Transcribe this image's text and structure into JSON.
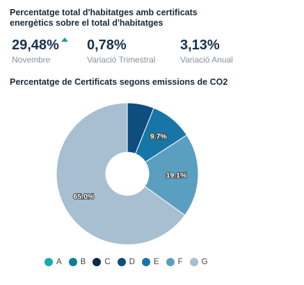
{
  "header": {
    "title": "Percentatge total d'habitatges amb certificats energètics sobre el total d'habitatges"
  },
  "kpis": [
    {
      "value": "29,48%",
      "label": "Novembre",
      "trend": "up"
    },
    {
      "value": "0,78%",
      "label": "Variació Trimestral"
    },
    {
      "value": "3,13%",
      "label": "Variació Anual"
    }
  ],
  "colors": {
    "accent_up": "#1d9c9c"
  },
  "chart_data": {
    "type": "pie",
    "title": "Percentatge de Certificats segons emissions de CO2",
    "donut": true,
    "categories": [
      "A",
      "B",
      "C",
      "D",
      "E",
      "F",
      "G"
    ],
    "values": [
      0.0,
      0.0,
      0.0,
      6.1,
      9.7,
      19.1,
      65.0
    ],
    "data_labels": [
      "",
      "",
      "",
      "",
      "9.7%",
      "19.1%",
      "65.0%"
    ],
    "colors": [
      "#1aa6b7",
      "#0f7f8f",
      "#0b2a4a",
      "#0d4e7e",
      "#1776a6",
      "#5a9fc0",
      "#a7bfd0"
    ],
    "legend_position": "bottom"
  }
}
